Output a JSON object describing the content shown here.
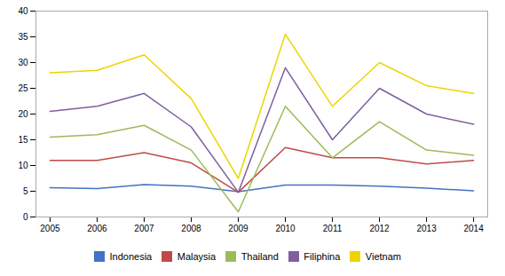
{
  "chart_data": {
    "type": "line",
    "x": [
      2005,
      2006,
      2007,
      2008,
      2009,
      2010,
      2011,
      2012,
      2013,
      2014
    ],
    "series": [
      {
        "name": "Indonesia",
        "color": "#4472C4",
        "values": [
          5.7,
          5.5,
          6.3,
          6.0,
          4.9,
          6.2,
          6.2,
          6.0,
          5.6,
          5.1
        ]
      },
      {
        "name": "Malaysia",
        "color": "#BE4B48",
        "values": [
          11.0,
          11.0,
          12.5,
          10.5,
          4.8,
          13.5,
          11.5,
          11.5,
          10.3,
          11.0
        ]
      },
      {
        "name": "Thailand",
        "color": "#9BBB59",
        "values": [
          15.5,
          16.0,
          17.8,
          13.0,
          1.0,
          21.5,
          11.5,
          18.5,
          13.0,
          12.0
        ]
      },
      {
        "name": "Filiphina",
        "color": "#7F5F9E",
        "values": [
          20.5,
          21.5,
          24.0,
          17.5,
          4.8,
          29.0,
          15.0,
          25.0,
          20.0,
          18.0
        ]
      },
      {
        "name": "Vietnam",
        "color": "#EFD400",
        "values": [
          28.0,
          28.5,
          31.5,
          23.0,
          7.5,
          35.5,
          21.5,
          30.0,
          25.5,
          24.0
        ]
      }
    ],
    "xlim": [
      2004.7,
      2014.3
    ],
    "xticks": [
      2005,
      2006,
      2007,
      2008,
      2009,
      2010,
      2011,
      2012,
      2013,
      2014
    ],
    "ylim": [
      0,
      40
    ],
    "yticks": [
      0,
      5,
      10,
      15,
      20,
      25,
      30,
      35,
      40
    ],
    "grid": false,
    "legend": "bottom"
  }
}
